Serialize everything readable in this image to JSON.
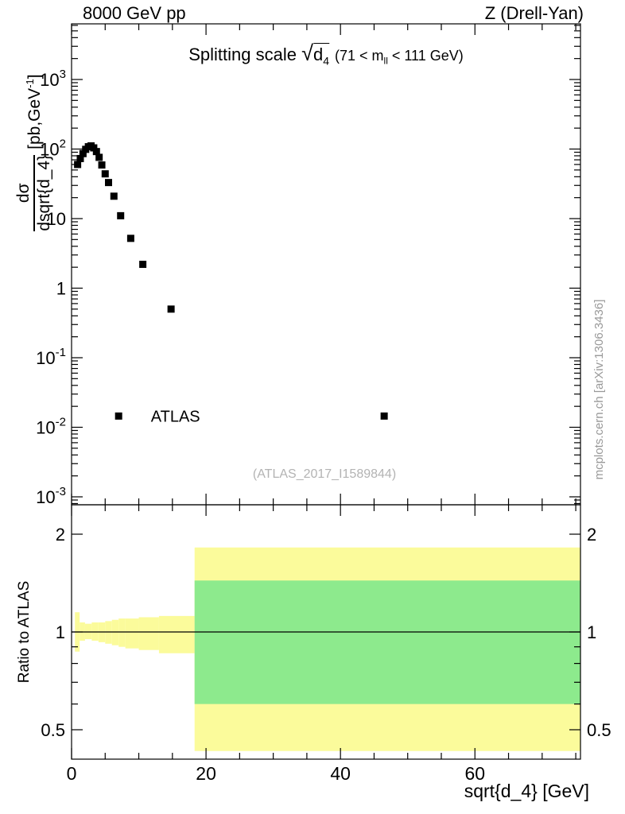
{
  "header": {
    "left": "8000 GeV pp",
    "right": "Z (Drell-Yan)"
  },
  "title": {
    "prefix": "Splitting scale",
    "radical": "√",
    "arg": "d",
    "arg_sub": "4",
    "cond_pre": "(71 < m",
    "cond_sub": "ll",
    "cond_post": " < 111 GeV)"
  },
  "main_axis": {
    "ylabel_num": "dσ",
    "ylabel_den": "dsqrt{d_4}",
    "units_pre": "[pb,GeV",
    "units_sup": "-1",
    "units_post": "]"
  },
  "ratio_axis": {
    "ylabel": "Ratio to ATLAS"
  },
  "xlabel": "sqrt{d_4} [GeV]",
  "watermark": "(ATLAS_2017_I1589844)",
  "sidenote": "mcplots.cern.ch [arXiv:1306.3436]",
  "colors": {
    "yellow": "#fbfb9b",
    "green": "#8dea8d",
    "marker": "#000000",
    "frame": "#000000"
  },
  "chart_data": [
    {
      "type": "scatter",
      "title": "Splitting scale sqrt(d_4) (71 < m_ll < 111 GeV)",
      "xlabel": "sqrt{d_4} [GeV]",
      "ylabel": "dσ/dsqrt{d_4} [pb,GeV^-1]",
      "xscale": "linear",
      "yscale": "log",
      "xlim": [
        0,
        75.7
      ],
      "ylim": [
        0.00078,
        6300
      ],
      "x_major_ticks": [
        0,
        20,
        40,
        60
      ],
      "x_minor_step": 5,
      "y_major_ticks": [
        {
          "value": 1000,
          "base": "10",
          "sup": "3"
        },
        {
          "value": 100,
          "base": "10",
          "sup": "2"
        },
        {
          "value": 10,
          "base": "10",
          "sup": ""
        },
        {
          "value": 1,
          "base": "1",
          "sup": ""
        },
        {
          "value": 0.1,
          "base": "10",
          "sup": "-1"
        },
        {
          "value": 0.01,
          "base": "10",
          "sup": "-2"
        },
        {
          "value": 0.001,
          "base": "10",
          "sup": "-3"
        }
      ],
      "series": [
        {
          "name": "ATLAS",
          "marker": "filled-square",
          "color": "#000000",
          "points": [
            [
              0.9,
              60
            ],
            [
              1.3,
              73
            ],
            [
              1.7,
              86
            ],
            [
              2.1,
              99
            ],
            [
              2.5,
              108
            ],
            [
              2.9,
              111
            ],
            [
              3.3,
              104
            ],
            [
              3.7,
              92
            ],
            [
              4.1,
              76
            ],
            [
              4.5,
              59
            ],
            [
              5.0,
              44
            ],
            [
              5.5,
              33
            ],
            [
              6.3,
              21
            ],
            [
              7.3,
              11
            ],
            [
              8.8,
              5.2
            ],
            [
              10.6,
              2.2
            ],
            [
              14.8,
              0.5
            ],
            [
              46.5,
              0.0145
            ]
          ]
        }
      ],
      "legend": {
        "label": "ATLAS",
        "marker_x": 7.0,
        "marker_y": 0.0145,
        "label_x": 11.8
      }
    },
    {
      "type": "band",
      "ylabel": "Ratio to ATLAS",
      "yscale": "log",
      "xlim": [
        0,
        75.7
      ],
      "ylim": [
        0.406,
        2.46
      ],
      "y_major_ticks": [
        {
          "value": 2,
          "label": "2"
        },
        {
          "value": 1,
          "label": "1"
        },
        {
          "value": 0.5,
          "label": "0.5"
        }
      ],
      "y_minor_ticks": [
        0.6,
        0.7,
        0.8,
        0.9
      ],
      "reference_line": 1,
      "bands": {
        "wide": {
          "x0": 18.3,
          "x1": 75.7,
          "yellow_lo": 0.43,
          "yellow_hi": 1.82,
          "green_lo": 0.6,
          "green_hi": 1.44
        },
        "thin_bins": [
          [
            0.5,
            1.2,
            0.87,
            1.15
          ],
          [
            1.2,
            2.0,
            0.94,
            1.07
          ],
          [
            2.0,
            3.0,
            0.95,
            1.06
          ],
          [
            3.0,
            4.0,
            0.94,
            1.07
          ],
          [
            4.0,
            5.0,
            0.93,
            1.07
          ],
          [
            5.0,
            6.0,
            0.92,
            1.08
          ],
          [
            6.0,
            7.0,
            0.91,
            1.09
          ],
          [
            7.0,
            8.0,
            0.9,
            1.1
          ],
          [
            8.0,
            10.0,
            0.89,
            1.1
          ],
          [
            10.0,
            13.0,
            0.88,
            1.11
          ],
          [
            13.0,
            18.3,
            0.86,
            1.12
          ]
        ]
      }
    }
  ]
}
